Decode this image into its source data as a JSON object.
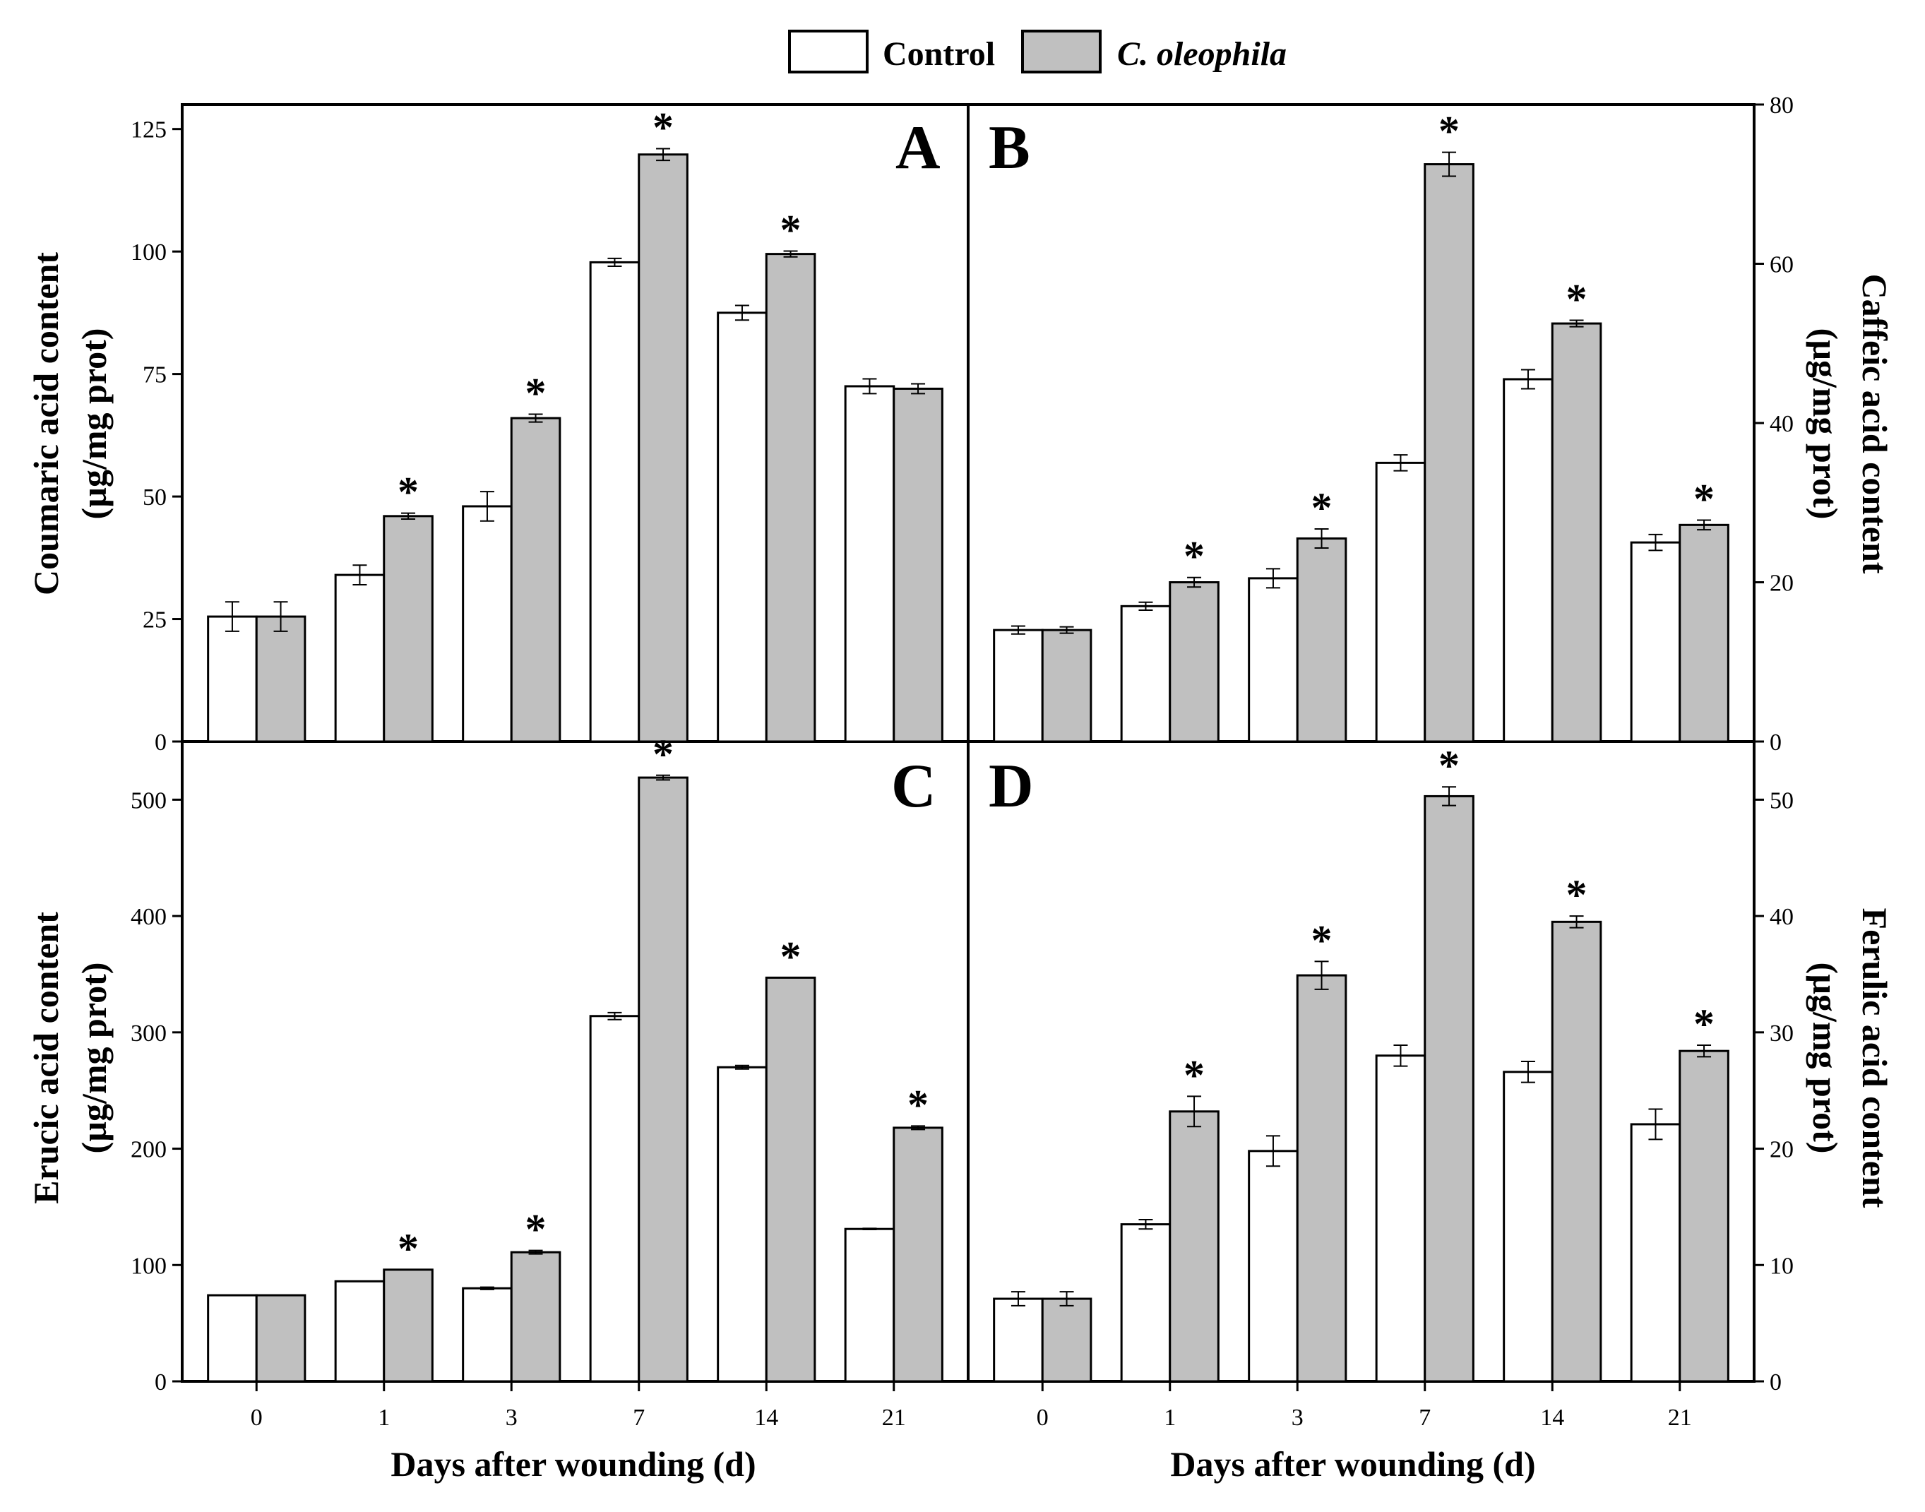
{
  "legend": {
    "control": "Control",
    "treatment": "C. oleophila"
  },
  "colors": {
    "control": "#ffffff",
    "treatment": "#c0c0c0",
    "stroke": "#000000"
  },
  "significance_marker": "*",
  "chart_data": [
    {
      "panel": "A",
      "type": "bar",
      "ylabel_lines": [
        "Coumaric acid content",
        "(µg/mg prot)"
      ],
      "xlabel": "Days after wounding (d)",
      "categories": [
        "0",
        "1",
        "3",
        "7",
        "14",
        "21"
      ],
      "ylim": [
        0,
        130
      ],
      "yticks": [
        0,
        25,
        50,
        75,
        100,
        125
      ],
      "series": [
        {
          "name": "Control",
          "values": [
            25.5,
            34,
            48,
            97.8,
            87.5,
            72.5
          ],
          "errors": [
            3,
            2,
            3,
            0.8,
            1.5,
            1.5
          ]
        },
        {
          "name": "C. oleophila",
          "values": [
            25.5,
            46,
            66,
            119.8,
            99.5,
            72
          ],
          "errors": [
            3,
            0.6,
            0.8,
            1.2,
            0.6,
            1
          ]
        }
      ],
      "significant": [
        false,
        true,
        true,
        true,
        true,
        false
      ]
    },
    {
      "panel": "B",
      "type": "bar",
      "ylabel_lines": [
        "Caffeic acid  content",
        "(µg/mg prot)"
      ],
      "xlabel": "Days after wounding (d)",
      "categories": [
        "0",
        "1",
        "3",
        "7",
        "14",
        "21"
      ],
      "ylim": [
        0,
        80
      ],
      "yticks": [
        0,
        20,
        40,
        60,
        80
      ],
      "series": [
        {
          "name": "Control",
          "values": [
            14,
            17,
            20.5,
            35,
            45.5,
            25
          ],
          "errors": [
            0.5,
            0.5,
            1.2,
            1,
            1.2,
            1
          ]
        },
        {
          "name": "C. oleophila",
          "values": [
            14,
            20,
            25.5,
            72.5,
            52.5,
            27.2
          ],
          "errors": [
            0.4,
            0.6,
            1.2,
            1.5,
            0.4,
            0.6
          ]
        }
      ],
      "significant": [
        false,
        true,
        true,
        true,
        true,
        true
      ]
    },
    {
      "panel": "C",
      "type": "bar",
      "ylabel_lines": [
        "Erucic acid content",
        "(µg/mg prot)"
      ],
      "xlabel": "Days after wounding (d)",
      "categories": [
        "0",
        "1",
        "3",
        "7",
        "14",
        "21"
      ],
      "ylim": [
        0,
        550
      ],
      "yticks": [
        0,
        100,
        200,
        300,
        400,
        500
      ],
      "series": [
        {
          "name": "Control",
          "values": [
            74,
            86,
            80,
            314,
            270,
            131
          ],
          "errors": [
            0,
            0,
            1,
            3,
            1.5,
            0.5
          ]
        },
        {
          "name": "C. oleophila",
          "values": [
            74,
            96,
            111,
            519,
            347,
            218
          ],
          "errors": [
            0,
            0,
            1.5,
            2,
            0,
            1.5
          ]
        }
      ],
      "significant": [
        false,
        true,
        true,
        true,
        true,
        true
      ]
    },
    {
      "panel": "D",
      "type": "bar",
      "ylabel_lines": [
        "Ferulic acid content",
        "(µg/mg prot)"
      ],
      "xlabel": "Days after wounding (d)",
      "categories": [
        "0",
        "1",
        "3",
        "7",
        "14",
        "21"
      ],
      "ylim": [
        0,
        55
      ],
      "yticks": [
        0,
        10,
        20,
        30,
        40,
        50
      ],
      "series": [
        {
          "name": "Control",
          "values": [
            7.1,
            13.5,
            19.8,
            28,
            26.6,
            22.1
          ],
          "errors": [
            0.6,
            0.4,
            1.3,
            0.9,
            0.9,
            1.3
          ]
        },
        {
          "name": "C. oleophila",
          "values": [
            7.1,
            23.2,
            34.9,
            50.3,
            39.5,
            28.4
          ],
          "errors": [
            0.6,
            1.3,
            1.2,
            0.8,
            0.5,
            0.5
          ]
        }
      ],
      "significant": [
        false,
        true,
        true,
        true,
        true,
        true
      ]
    }
  ]
}
